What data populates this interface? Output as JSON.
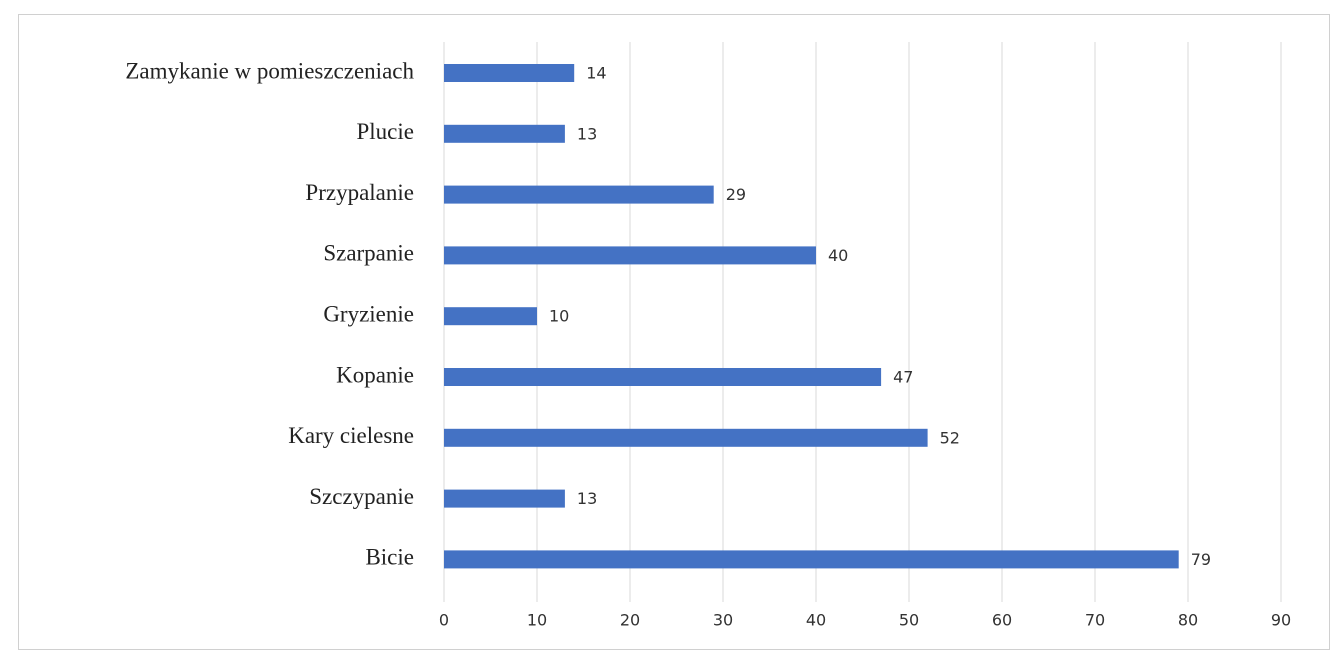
{
  "chart_data": {
    "type": "barh",
    "categories": [
      "Zamykanie w pomieszczeniach",
      "Plucie",
      "Przypalanie",
      "Szarpanie",
      "Gryzienie",
      "Kopanie",
      "Kary cielesne",
      "Szczypanie",
      "Bicie"
    ],
    "values": [
      14,
      13,
      29,
      40,
      10,
      47,
      52,
      13,
      79
    ],
    "color": "#4472c4",
    "xlim": [
      0,
      90
    ],
    "xticks": [
      0,
      10,
      20,
      30,
      40,
      50,
      60,
      70,
      80,
      90
    ],
    "grid": true
  }
}
